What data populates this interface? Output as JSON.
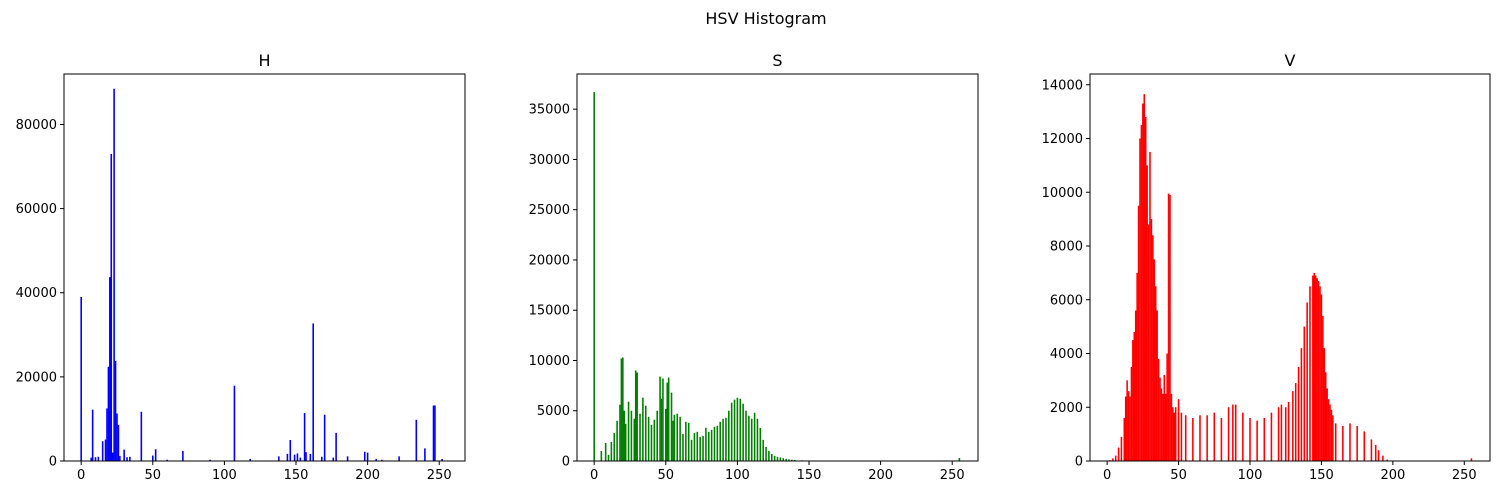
{
  "figure_title": "HSV Histogram",
  "chart_data": [
    {
      "type": "bar",
      "title": "H",
      "color": "#0000ff",
      "xlim": [
        -12,
        268
      ],
      "ylim": [
        0,
        92000
      ],
      "xticks": [
        0,
        50,
        100,
        150,
        200,
        250
      ],
      "yticks": [
        0,
        20000,
        40000,
        60000,
        80000
      ],
      "x": [
        0,
        7,
        8,
        10,
        12,
        15,
        17,
        18,
        19,
        20,
        21,
        22,
        23,
        24,
        25,
        26,
        27,
        30,
        32,
        34,
        42,
        50,
        52,
        60,
        71,
        90,
        107,
        118,
        138,
        144,
        146,
        149,
        151,
        153,
        156,
        157,
        160,
        162,
        168,
        170,
        176,
        178,
        186,
        198,
        200,
        206,
        210,
        222,
        234,
        240,
        246,
        247,
        252
      ],
      "values": [
        39000,
        800,
        12200,
        900,
        1000,
        4700,
        5100,
        12500,
        22400,
        43700,
        73000,
        2000,
        88500,
        23800,
        11300,
        8600,
        1200,
        2700,
        900,
        1000,
        11700,
        1300,
        2800,
        300,
        2400,
        300,
        17900,
        500,
        1100,
        1700,
        5000,
        1500,
        1800,
        800,
        11400,
        2100,
        1700,
        32700,
        1000,
        11000,
        800,
        6700,
        1100,
        2200,
        2000,
        500,
        300,
        1100,
        9800,
        3000,
        13200,
        13200,
        500
      ]
    },
    {
      "type": "bar",
      "title": "S",
      "color": "#008000",
      "xlim": [
        -12,
        268
      ],
      "ylim": [
        0,
        38500
      ],
      "xticks": [
        0,
        50,
        100,
        150,
        200,
        250
      ],
      "yticks": [
        0,
        5000,
        10000,
        15000,
        20000,
        25000,
        30000,
        35000
      ],
      "x": [
        0,
        5,
        8,
        10,
        12,
        14,
        16,
        18,
        19,
        20,
        21,
        22,
        24,
        26,
        28,
        29,
        30,
        32,
        34,
        36,
        38,
        40,
        42,
        44,
        46,
        47,
        48,
        50,
        51,
        52,
        54,
        55,
        56,
        58,
        60,
        62,
        64,
        66,
        68,
        70,
        72,
        74,
        76,
        78,
        80,
        82,
        84,
        86,
        88,
        90,
        92,
        94,
        96,
        98,
        100,
        102,
        104,
        106,
        108,
        110,
        112,
        114,
        116,
        118,
        120,
        122,
        124,
        126,
        128,
        130,
        132,
        134,
        136,
        138,
        140,
        145,
        150,
        155,
        160,
        170,
        180,
        190,
        200,
        220,
        240,
        255
      ],
      "values": [
        36700,
        1000,
        1800,
        600,
        1900,
        2800,
        4000,
        5600,
        10200,
        10300,
        5000,
        3700,
        5900,
        5000,
        4200,
        9000,
        8800,
        4700,
        6300,
        5500,
        4400,
        3600,
        4100,
        5000,
        8400,
        6200,
        8200,
        5200,
        7800,
        8300,
        6800,
        4000,
        4600,
        4700,
        4400,
        2700,
        3900,
        3800,
        2100,
        2800,
        2900,
        2400,
        2500,
        3300,
        2900,
        3100,
        3400,
        3500,
        3900,
        4200,
        4300,
        5000,
        5800,
        6100,
        6300,
        6200,
        5700,
        5000,
        4500,
        4200,
        4800,
        4200,
        3300,
        2100,
        1400,
        1000,
        700,
        500,
        400,
        350,
        280,
        220,
        170,
        130,
        100,
        70,
        50,
        40,
        30,
        20,
        15,
        10,
        10,
        8,
        5,
        300
      ]
    },
    {
      "type": "bar",
      "title": "V",
      "color": "#ff0000",
      "xlim": [
        -12,
        268
      ],
      "ylim": [
        0,
        14400
      ],
      "xticks": [
        0,
        50,
        100,
        150,
        200,
        250
      ],
      "yticks": [
        0,
        2000,
        4000,
        6000,
        8000,
        10000,
        12000,
        14000
      ],
      "x": [
        0,
        2,
        4,
        6,
        8,
        10,
        12,
        13,
        14,
        15,
        16,
        17,
        18,
        19,
        20,
        21,
        22,
        23,
        24,
        25,
        26,
        27,
        28,
        29,
        30,
        31,
        32,
        33,
        34,
        35,
        36,
        37,
        38,
        39,
        40,
        41,
        42,
        43,
        44,
        45,
        46,
        47,
        48,
        50,
        52,
        55,
        60,
        65,
        70,
        75,
        80,
        85,
        88,
        90,
        95,
        100,
        105,
        110,
        115,
        120,
        122,
        125,
        127,
        130,
        132,
        134,
        136,
        138,
        140,
        142,
        144,
        145,
        146,
        147,
        148,
        149,
        150,
        151,
        152,
        153,
        154,
        155,
        156,
        157,
        158,
        160,
        165,
        170,
        175,
        180,
        185,
        188,
        190,
        193,
        196,
        200,
        220,
        240,
        255
      ],
      "values": [
        0,
        30,
        100,
        200,
        500,
        900,
        1600,
        2400,
        3000,
        2600,
        2400,
        3500,
        4500,
        4800,
        5600,
        7000,
        9500,
        12000,
        12500,
        13300,
        13650,
        12800,
        11000,
        8800,
        11500,
        9000,
        8400,
        7500,
        6500,
        5600,
        3800,
        3100,
        2700,
        2500,
        3200,
        2500,
        4000,
        9950,
        9900,
        2500,
        2000,
        1800,
        2000,
        2300,
        1800,
        1700,
        1600,
        1700,
        1700,
        1800,
        1600,
        2000,
        2100,
        2100,
        1800,
        1600,
        1500,
        1600,
        1800,
        2000,
        2100,
        2000,
        2200,
        2600,
        2900,
        3500,
        4200,
        5000,
        5900,
        6500,
        6900,
        7000,
        6900,
        6800,
        6700,
        6500,
        6200,
        5400,
        4200,
        3300,
        2700,
        2300,
        2100,
        1900,
        1700,
        1400,
        1300,
        1400,
        1300,
        1100,
        800,
        600,
        400,
        200,
        50,
        10,
        5,
        5,
        100
      ]
    }
  ]
}
